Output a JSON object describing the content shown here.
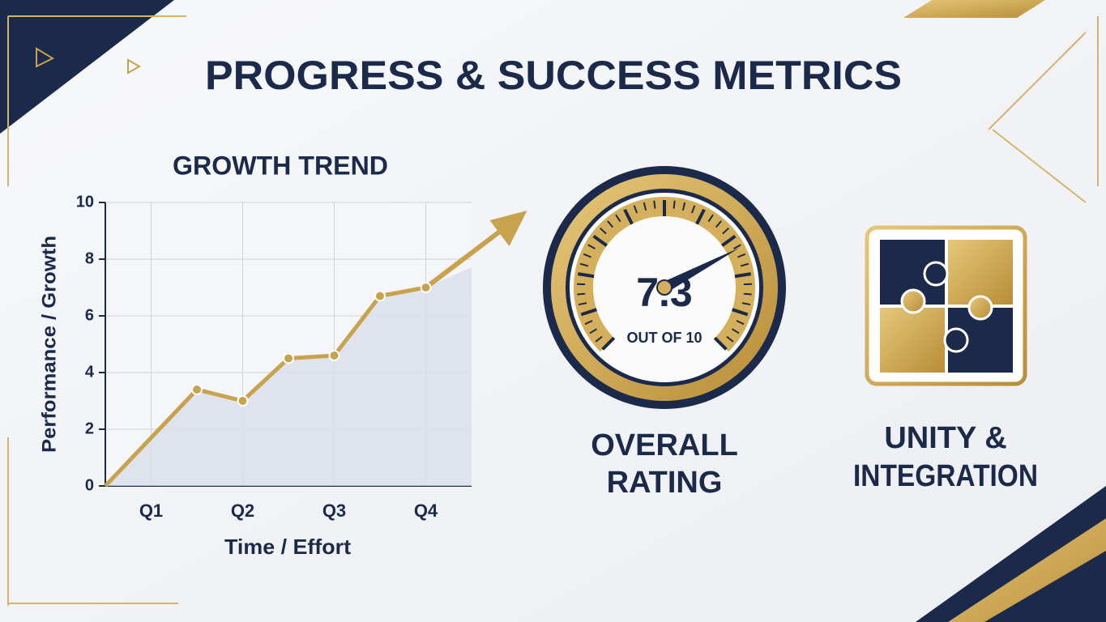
{
  "title": "PROGRESS & SUCCESS METRICS",
  "chart_data": {
    "type": "line",
    "title": "GROWTH TREND",
    "x_label": "Time / Effort",
    "y_label": "Performance / Growth",
    "x": [
      0,
      1,
      1.5,
      2,
      2.5,
      3,
      3.5
    ],
    "values": [
      0,
      3.4,
      3.0,
      4.5,
      4.6,
      6.7,
      7.0
    ],
    "color": "#c9a24e",
    "xlim": [
      0,
      4
    ],
    "ylim": [
      0,
      10
    ],
    "xticks": [
      {
        "value": 0.5,
        "label": "Q1"
      },
      {
        "value": 1.5,
        "label": "Q2"
      },
      {
        "value": 2.5,
        "label": "Q3"
      },
      {
        "value": 3.5,
        "label": "Q4"
      }
    ],
    "yticks": [
      0,
      2,
      4,
      6,
      8,
      10
    ],
    "grid": true
  },
  "gauge": {
    "value": 7.3,
    "max": 10,
    "value_label": "7.3",
    "caption": "OUT OF 10",
    "label": [
      "OVERALL",
      "RATING"
    ]
  },
  "puzzle": {
    "label": [
      "UNITY &",
      "INTEGRATION"
    ]
  }
}
